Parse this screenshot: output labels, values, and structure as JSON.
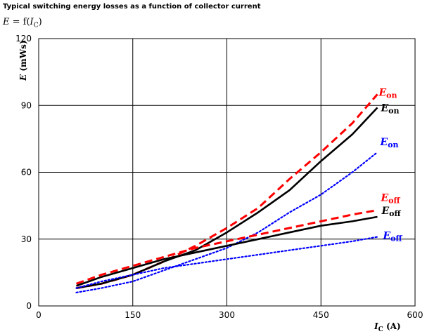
{
  "header": {
    "title": "Typical switching energy losses as a function of collector current",
    "formula_lhs": "E",
    "formula_eq": " = f(",
    "formula_var": "I",
    "formula_sub": "C",
    "formula_close": ")"
  },
  "chart_data": {
    "type": "line",
    "xlabel": {
      "var": "I",
      "sub": "C",
      "unit": "(A)"
    },
    "ylabel": {
      "var": "E",
      "unit": "(mWs)"
    },
    "xlim": [
      0,
      600
    ],
    "ylim": [
      0,
      120
    ],
    "xticks": [
      "0",
      "150",
      "300",
      "450",
      "600"
    ],
    "yticks": [
      "0",
      "30",
      "60",
      "90",
      "120"
    ],
    "grid": true,
    "series": [
      {
        "name": "Eon",
        "label_main": "E",
        "label_sub": "on",
        "color": "#ff0000",
        "dash": "dashed",
        "x": [
          60,
          100,
          150,
          200,
          250,
          300,
          350,
          400,
          450,
          500,
          540
        ],
        "y": [
          8,
          10,
          14,
          20,
          27,
          35,
          44,
          57,
          69,
          82,
          95
        ]
      },
      {
        "name": "Eon",
        "label_main": "E",
        "label_sub": "on",
        "color": "#000000",
        "dash": "solid",
        "x": [
          60,
          100,
          150,
          200,
          250,
          300,
          350,
          400,
          450,
          500,
          540
        ],
        "y": [
          8,
          10,
          14,
          20,
          25,
          33,
          42,
          52,
          65,
          77,
          89
        ]
      },
      {
        "name": "Eon",
        "label_main": "E",
        "label_sub": "on",
        "color": "#0000ff",
        "dash": "dotted",
        "x": [
          60,
          100,
          150,
          200,
          250,
          300,
          350,
          400,
          450,
          500,
          540
        ],
        "y": [
          6,
          8,
          11,
          16,
          21,
          26,
          33,
          42,
          50,
          60,
          69
        ]
      },
      {
        "name": "Eoff",
        "label_main": "E",
        "label_sub": "off",
        "color": "#ff0000",
        "dash": "dashed",
        "x": [
          60,
          100,
          150,
          200,
          250,
          300,
          350,
          400,
          450,
          500,
          540
        ],
        "y": [
          10,
          14,
          18,
          22,
          26,
          29,
          32,
          35,
          38,
          41,
          43
        ]
      },
      {
        "name": "Eoff",
        "label_main": "E",
        "label_sub": "off",
        "color": "#000000",
        "dash": "solid",
        "x": [
          60,
          100,
          150,
          200,
          250,
          300,
          350,
          400,
          450,
          500,
          540
        ],
        "y": [
          9,
          13,
          17,
          21,
          24,
          27,
          30,
          33,
          36,
          38,
          40
        ]
      },
      {
        "name": "Eoff",
        "label_main": "E",
        "label_sub": "off",
        "color": "#0000ff",
        "dash": "dotted",
        "x": [
          60,
          100,
          150,
          200,
          250,
          300,
          350,
          400,
          450,
          500,
          540
        ],
        "y": [
          8,
          11,
          14,
          17,
          19,
          21,
          23,
          25,
          27,
          29,
          31
        ]
      }
    ]
  }
}
